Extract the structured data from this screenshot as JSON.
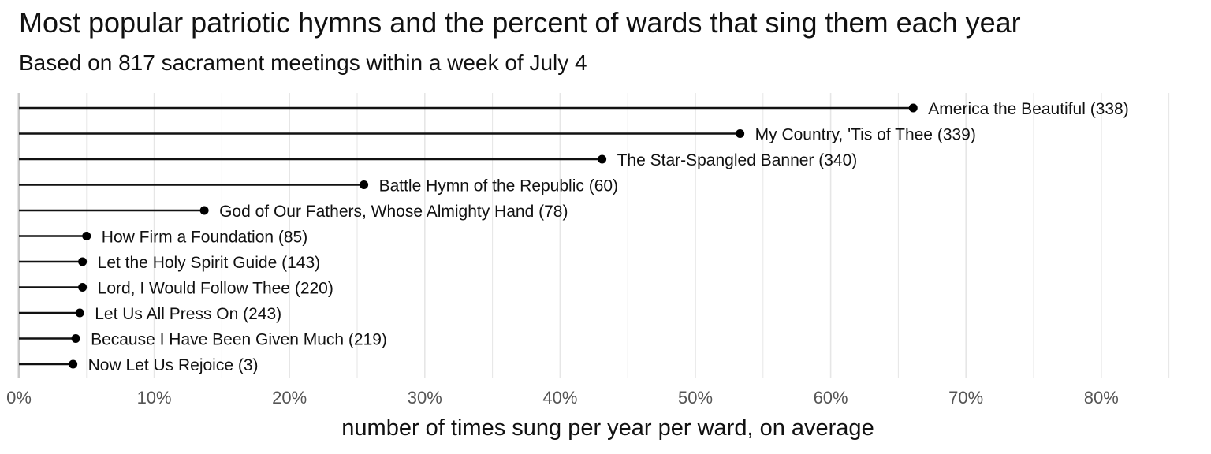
{
  "chart_data": {
    "type": "lollipop",
    "title": "Most popular patriotic hymns and the percent of wards that sing them each year",
    "subtitle": "Based on 817 sacrament meetings within a week of July 4",
    "xlabel": "number of times sung per year per ward, on average",
    "ylabel": "",
    "xlim": [
      0,
      85
    ],
    "x_ticks": [
      0,
      10,
      20,
      30,
      40,
      50,
      60,
      70,
      80
    ],
    "x_tick_labels": [
      "0%",
      "10%",
      "20%",
      "30%",
      "40%",
      "50%",
      "60%",
      "70%",
      "80%"
    ],
    "grid": true,
    "legend": "none",
    "colors": {
      "stem": "#111111",
      "point": "#000000",
      "grid": "#e6e6e6",
      "axis": "#c8c8c8",
      "tick_text": "#555555"
    },
    "series": [
      {
        "labels": [
          "America the Beautiful (338)",
          "My Country, 'Tis of Thee (339)",
          "The Star-Spangled Banner (340)",
          "Battle Hymn of the Republic (60)",
          "God of Our Fathers, Whose Almighty Hand (78)",
          "How Firm a Foundation (85)",
          "Let the Holy Spirit Guide (143)",
          "Lord, I Would Follow Thee (220)",
          "Let Us All Press On (243)",
          "Because I Have Been Given Much (219)",
          "Now Let Us Rejoice (3)"
        ],
        "values": [
          66.1,
          53.3,
          43.1,
          25.5,
          13.7,
          5.0,
          4.7,
          4.7,
          4.5,
          4.2,
          4.0
        ]
      }
    ]
  }
}
